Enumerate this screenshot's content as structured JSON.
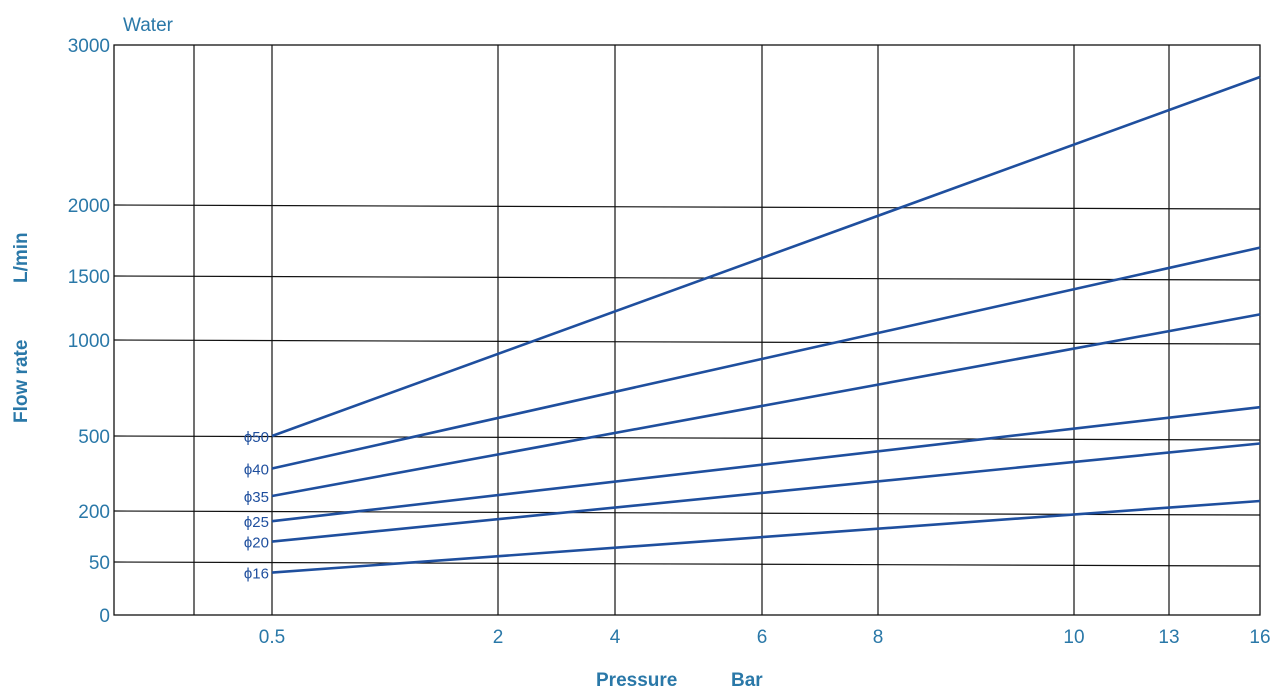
{
  "chart_data": {
    "type": "line",
    "title": "Water",
    "xlabel": "Pressure",
    "xunit": "Bar",
    "ylabel": "Flow rate",
    "yunit": "L/min",
    "x_ticks": [
      "0.5",
      "2",
      "4",
      "6",
      "8",
      "10",
      "13",
      "16"
    ],
    "y_ticks": [
      "0",
      "50",
      "200",
      "500",
      "1000",
      "1500",
      "2000",
      "3000"
    ],
    "xlim": [
      0,
      16
    ],
    "ylim": [
      0,
      3000
    ],
    "x_scale": "non-uniform (categorical tick positions)",
    "y_scale": "non-uniform",
    "grid": true,
    "line_color": "#1f4f9e",
    "series": [
      {
        "name": "ϕ50",
        "x": [
          0.5,
          16
        ],
        "y": [
          500,
          2800
        ]
      },
      {
        "name": "ϕ40",
        "x": [
          0.5,
          16
        ],
        "y": [
          370,
          1700
        ]
      },
      {
        "name": "ϕ35",
        "x": [
          0.5,
          16
        ],
        "y": [
          260,
          1200
        ]
      },
      {
        "name": "ϕ25",
        "x": [
          0.5,
          16
        ],
        "y": [
          170,
          650
        ]
      },
      {
        "name": "ϕ20",
        "x": [
          0.5,
          16
        ],
        "y": [
          110,
          470
        ]
      },
      {
        "name": "ϕ16",
        "x": [
          0.5,
          16
        ],
        "y": [
          40,
          240
        ]
      }
    ]
  }
}
